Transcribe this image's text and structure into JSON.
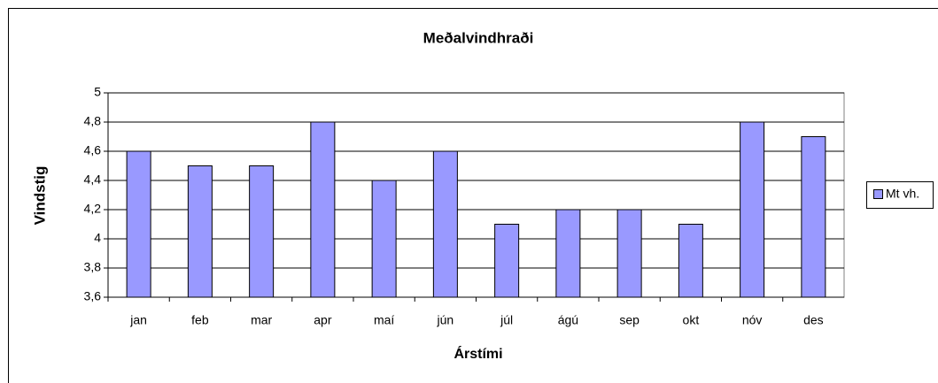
{
  "chart_data": {
    "type": "bar",
    "title": "Meðalvindhraði",
    "x_label": "Árstími",
    "y_label": "Vindstig",
    "categories": [
      "jan",
      "feb",
      "mar",
      "apr",
      "maí",
      "jún",
      "júl",
      "ágú",
      "sep",
      "okt",
      "nóv",
      "des"
    ],
    "series": [
      {
        "name": "Mt vh.",
        "color": "#9999ff",
        "values": [
          4.6,
          4.5,
          4.5,
          4.8,
          4.4,
          4.6,
          4.1,
          4.2,
          4.2,
          4.1,
          4.8,
          4.7
        ]
      }
    ],
    "ylim": [
      3.6,
      5
    ],
    "yticks": [
      {
        "value": 3.6,
        "label": "3,6"
      },
      {
        "value": 3.8,
        "label": "3,8"
      },
      4,
      {
        "value": 4.2,
        "label": "4,2"
      },
      {
        "value": 4.4,
        "label": "4,4"
      },
      {
        "value": 4.6,
        "label": "4,6"
      },
      {
        "value": 4.8,
        "label": "4,8"
      },
      5
    ],
    "grid": true,
    "legend": "right"
  }
}
